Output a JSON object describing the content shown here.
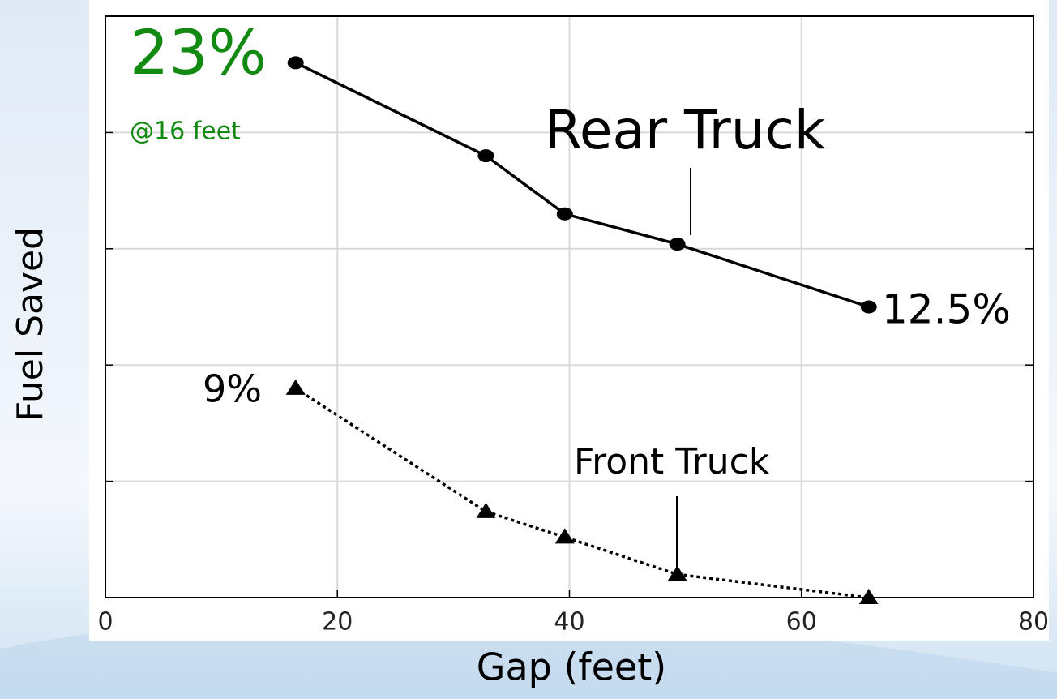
{
  "chart_data": {
    "type": "line",
    "xlabel": "Gap (feet)",
    "ylabel": "Fuel Saved",
    "xlim": [
      0,
      80
    ],
    "xticks": [
      0,
      20,
      40,
      60,
      80
    ],
    "ylim": [
      0,
      25
    ],
    "yticks": [
      0,
      5,
      10,
      15,
      20,
      25
    ],
    "grid": true,
    "series": [
      {
        "name": "Rear Truck",
        "color": "#000000",
        "line_style": "solid",
        "marker": "circle",
        "x": [
          16.4,
          32.8,
          39.6,
          49.3,
          65.8
        ],
        "values": [
          23,
          19,
          16.5,
          15.2,
          12.5
        ],
        "value_labels": [
          "23%",
          null,
          null,
          null,
          "12.5%"
        ]
      },
      {
        "name": "Front Truck",
        "color": "#000000",
        "line_style": "dotted",
        "marker": "triangle",
        "x": [
          16.4,
          32.8,
          39.6,
          49.3,
          65.8
        ],
        "values": [
          9,
          3.7,
          2.6,
          1,
          0
        ],
        "value_labels": [
          "9%",
          null,
          null,
          null,
          null
        ]
      }
    ],
    "annotations": [
      "@16 feet"
    ]
  }
}
